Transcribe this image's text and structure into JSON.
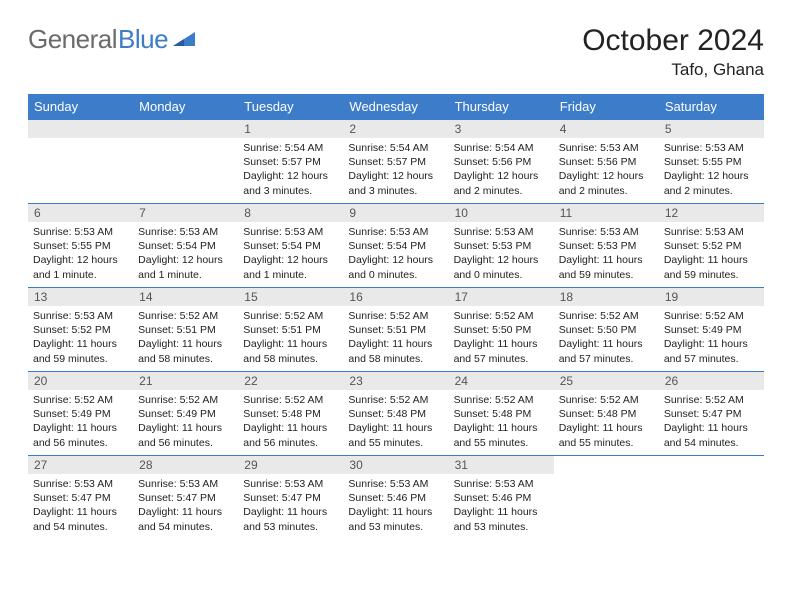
{
  "brand": {
    "general": "General",
    "blue": "Blue"
  },
  "title": "October 2024",
  "location": "Tafo, Ghana",
  "colors": {
    "header_bg": "#3d7cc9",
    "header_text": "#ffffff",
    "daynum_bg": "#e9e9e9",
    "daynum_text": "#555555",
    "body_text": "#222222",
    "border": "#3d7cc9",
    "logo_gray": "#6b6b6b"
  },
  "daynames": [
    "Sunday",
    "Monday",
    "Tuesday",
    "Wednesday",
    "Thursday",
    "Friday",
    "Saturday"
  ],
  "weeks": [
    [
      null,
      null,
      {
        "n": "1",
        "sr": "5:54 AM",
        "ss": "5:57 PM",
        "dl": "12 hours and 3 minutes."
      },
      {
        "n": "2",
        "sr": "5:54 AM",
        "ss": "5:57 PM",
        "dl": "12 hours and 3 minutes."
      },
      {
        "n": "3",
        "sr": "5:54 AM",
        "ss": "5:56 PM",
        "dl": "12 hours and 2 minutes."
      },
      {
        "n": "4",
        "sr": "5:53 AM",
        "ss": "5:56 PM",
        "dl": "12 hours and 2 minutes."
      },
      {
        "n": "5",
        "sr": "5:53 AM",
        "ss": "5:55 PM",
        "dl": "12 hours and 2 minutes."
      }
    ],
    [
      {
        "n": "6",
        "sr": "5:53 AM",
        "ss": "5:55 PM",
        "dl": "12 hours and 1 minute."
      },
      {
        "n": "7",
        "sr": "5:53 AM",
        "ss": "5:54 PM",
        "dl": "12 hours and 1 minute."
      },
      {
        "n": "8",
        "sr": "5:53 AM",
        "ss": "5:54 PM",
        "dl": "12 hours and 1 minute."
      },
      {
        "n": "9",
        "sr": "5:53 AM",
        "ss": "5:54 PM",
        "dl": "12 hours and 0 minutes."
      },
      {
        "n": "10",
        "sr": "5:53 AM",
        "ss": "5:53 PM",
        "dl": "12 hours and 0 minutes."
      },
      {
        "n": "11",
        "sr": "5:53 AM",
        "ss": "5:53 PM",
        "dl": "11 hours and 59 minutes."
      },
      {
        "n": "12",
        "sr": "5:53 AM",
        "ss": "5:52 PM",
        "dl": "11 hours and 59 minutes."
      }
    ],
    [
      {
        "n": "13",
        "sr": "5:53 AM",
        "ss": "5:52 PM",
        "dl": "11 hours and 59 minutes."
      },
      {
        "n": "14",
        "sr": "5:52 AM",
        "ss": "5:51 PM",
        "dl": "11 hours and 58 minutes."
      },
      {
        "n": "15",
        "sr": "5:52 AM",
        "ss": "5:51 PM",
        "dl": "11 hours and 58 minutes."
      },
      {
        "n": "16",
        "sr": "5:52 AM",
        "ss": "5:51 PM",
        "dl": "11 hours and 58 minutes."
      },
      {
        "n": "17",
        "sr": "5:52 AM",
        "ss": "5:50 PM",
        "dl": "11 hours and 57 minutes."
      },
      {
        "n": "18",
        "sr": "5:52 AM",
        "ss": "5:50 PM",
        "dl": "11 hours and 57 minutes."
      },
      {
        "n": "19",
        "sr": "5:52 AM",
        "ss": "5:49 PM",
        "dl": "11 hours and 57 minutes."
      }
    ],
    [
      {
        "n": "20",
        "sr": "5:52 AM",
        "ss": "5:49 PM",
        "dl": "11 hours and 56 minutes."
      },
      {
        "n": "21",
        "sr": "5:52 AM",
        "ss": "5:49 PM",
        "dl": "11 hours and 56 minutes."
      },
      {
        "n": "22",
        "sr": "5:52 AM",
        "ss": "5:48 PM",
        "dl": "11 hours and 56 minutes."
      },
      {
        "n": "23",
        "sr": "5:52 AM",
        "ss": "5:48 PM",
        "dl": "11 hours and 55 minutes."
      },
      {
        "n": "24",
        "sr": "5:52 AM",
        "ss": "5:48 PM",
        "dl": "11 hours and 55 minutes."
      },
      {
        "n": "25",
        "sr": "5:52 AM",
        "ss": "5:48 PM",
        "dl": "11 hours and 55 minutes."
      },
      {
        "n": "26",
        "sr": "5:52 AM",
        "ss": "5:47 PM",
        "dl": "11 hours and 54 minutes."
      }
    ],
    [
      {
        "n": "27",
        "sr": "5:53 AM",
        "ss": "5:47 PM",
        "dl": "11 hours and 54 minutes."
      },
      {
        "n": "28",
        "sr": "5:53 AM",
        "ss": "5:47 PM",
        "dl": "11 hours and 54 minutes."
      },
      {
        "n": "29",
        "sr": "5:53 AM",
        "ss": "5:47 PM",
        "dl": "11 hours and 53 minutes."
      },
      {
        "n": "30",
        "sr": "5:53 AM",
        "ss": "5:46 PM",
        "dl": "11 hours and 53 minutes."
      },
      {
        "n": "31",
        "sr": "5:53 AM",
        "ss": "5:46 PM",
        "dl": "11 hours and 53 minutes."
      },
      null,
      null
    ]
  ],
  "labels": {
    "sunrise": "Sunrise:",
    "sunset": "Sunset:",
    "daylight": "Daylight:"
  }
}
